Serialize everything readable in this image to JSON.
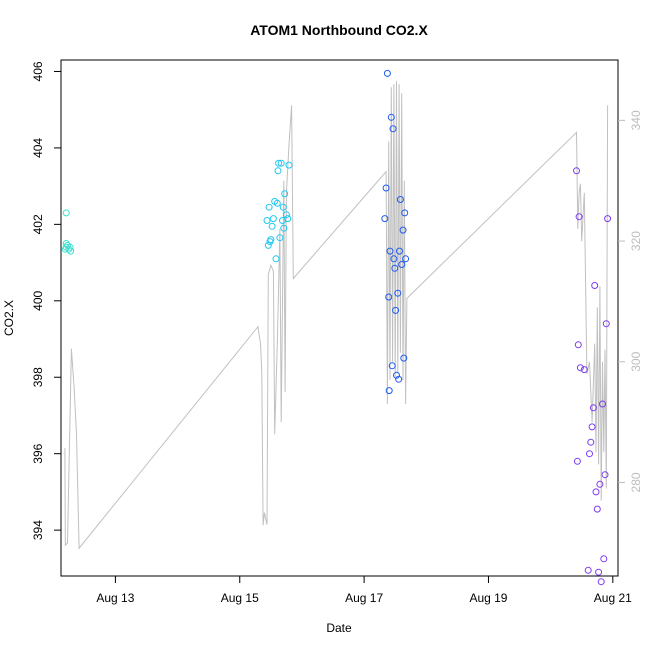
{
  "chart_data": {
    "type": "scatter",
    "title": "ATOM1 Northbound CO2.X",
    "xlabel": "Date",
    "ylabel": "CO2.X",
    "x_ticks": [
      "Aug 13",
      "Aug 15",
      "Aug 17",
      "Aug 19",
      "Aug 21"
    ],
    "y_ticks_left": [
      394,
      396,
      398,
      400,
      402,
      404,
      406
    ],
    "y_ticks_right": [
      280,
      300,
      320,
      340
    ],
    "xlim": [
      "2023-08-12 03:00",
      "2023-08-21 02:00"
    ],
    "ylim_left": [
      392.8,
      406.3
    ],
    "ylim_right": [
      264.5,
      350
    ],
    "right_axis_color": "#bdbdbd",
    "line_color": "#c0c0c0",
    "series": [
      {
        "color": "#40e0d0",
        "points": [
          [
            "2023-08-12 05:00",
            402.3
          ],
          [
            "2023-08-12 05:00",
            401.5
          ],
          [
            "2023-08-12 05:00",
            401.4
          ],
          [
            "2023-08-12 05:30",
            401.45
          ],
          [
            "2023-08-12 06:00",
            401.35
          ],
          [
            "2023-08-12 06:30",
            401.4
          ],
          [
            "2023-08-12 06:45",
            401.3
          ],
          [
            "2023-08-12 04:40",
            401.35
          ]
        ]
      },
      {
        "color": "#1ec8f0",
        "points": [
          [
            "2023-08-15 10:30",
            402.1
          ],
          [
            "2023-08-15 11:00",
            401.45
          ],
          [
            "2023-08-15 11:20",
            402.45
          ],
          [
            "2023-08-15 11:40",
            401.55
          ],
          [
            "2023-08-15 12:00",
            401.6
          ],
          [
            "2023-08-15 12:30",
            401.95
          ],
          [
            "2023-08-15 13:00",
            402.15
          ],
          [
            "2023-08-15 13:30",
            402.6
          ],
          [
            "2023-08-15 14:00",
            401.1
          ],
          [
            "2023-08-15 14:30",
            402.55
          ],
          [
            "2023-08-15 14:45",
            403.4
          ],
          [
            "2023-08-15 15:00",
            403.6
          ],
          [
            "2023-08-15 15:30",
            401.65
          ],
          [
            "2023-08-15 16:00",
            403.6
          ],
          [
            "2023-08-15 16:30",
            402.1
          ],
          [
            "2023-08-15 16:45",
            402.45
          ],
          [
            "2023-08-15 17:00",
            401.9
          ],
          [
            "2023-08-15 17:20",
            402.8
          ],
          [
            "2023-08-15 18:00",
            402.25
          ],
          [
            "2023-08-15 18:30",
            402.15
          ],
          [
            "2023-08-15 19:00",
            403.55
          ]
        ]
      },
      {
        "color": "#1f5cf0",
        "points": [
          [
            "2023-08-17 08:00",
            402.15
          ],
          [
            "2023-08-17 08:30",
            402.95
          ],
          [
            "2023-08-17 09:00",
            405.95
          ],
          [
            "2023-08-17 09:30",
            400.1
          ],
          [
            "2023-08-17 09:40",
            397.65
          ],
          [
            "2023-08-17 10:00",
            401.3
          ],
          [
            "2023-08-17 10:30",
            404.8
          ],
          [
            "2023-08-17 10:50",
            398.3
          ],
          [
            "2023-08-17 11:10",
            404.5
          ],
          [
            "2023-08-17 11:30",
            401.1
          ],
          [
            "2023-08-17 11:50",
            400.85
          ],
          [
            "2023-08-17 12:10",
            399.75
          ],
          [
            "2023-08-17 12:30",
            398.05
          ],
          [
            "2023-08-17 13:00",
            400.2
          ],
          [
            "2023-08-17 13:20",
            397.95
          ],
          [
            "2023-08-17 13:40",
            401.3
          ],
          [
            "2023-08-17 14:00",
            402.65
          ],
          [
            "2023-08-17 14:30",
            400.95
          ],
          [
            "2023-08-17 15:00",
            401.85
          ],
          [
            "2023-08-17 15:20",
            398.5
          ],
          [
            "2023-08-17 15:40",
            402.3
          ],
          [
            "2023-08-17 16:00",
            401.1
          ]
        ]
      },
      {
        "color": "#7d3cf0",
        "points": [
          [
            "2023-08-20 10:00",
            403.4
          ],
          [
            "2023-08-20 10:20",
            395.8
          ],
          [
            "2023-08-20 10:40",
            398.85
          ],
          [
            "2023-08-20 11:00",
            402.2
          ],
          [
            "2023-08-20 11:30",
            398.25
          ],
          [
            "2023-08-20 13:00",
            398.2
          ],
          [
            "2023-08-20 14:30",
            392.95
          ],
          [
            "2023-08-20 15:00",
            396.0
          ],
          [
            "2023-08-20 15:30",
            396.3
          ],
          [
            "2023-08-20 16:00",
            396.7
          ],
          [
            "2023-08-20 16:30",
            397.2
          ],
          [
            "2023-08-20 17:00",
            400.4
          ],
          [
            "2023-08-20 17:30",
            395.0
          ],
          [
            "2023-08-20 18:00",
            394.55
          ],
          [
            "2023-08-20 18:30",
            392.9
          ],
          [
            "2023-08-20 19:00",
            395.2
          ],
          [
            "2023-08-20 19:30",
            392.65
          ],
          [
            "2023-08-20 20:00",
            397.3
          ],
          [
            "2023-08-20 20:30",
            393.25
          ],
          [
            "2023-08-20 21:00",
            395.45
          ],
          [
            "2023-08-20 21:30",
            399.4
          ],
          [
            "2023-08-20 22:00",
            402.15
          ]
        ]
      }
    ],
    "line_series": {
      "axis": "right",
      "points": [
        [
          "2023-08-12 04:30",
          285.7
        ],
        [
          "2023-08-12 04:40",
          269.6
        ],
        [
          "2023-08-12 05:30",
          270.0
        ],
        [
          "2023-08-12 07:00",
          302.2
        ],
        [
          "2023-08-12 08:00",
          296.0
        ],
        [
          "2023-08-12 09:00",
          288.0
        ],
        [
          "2023-08-12 10:00",
          269.1
        ],
        [
          "2023-08-15 07:00",
          305.8
        ],
        [
          "2023-08-15 08:00",
          303.0
        ],
        [
          "2023-08-15 08:30",
          298.2
        ],
        [
          "2023-08-15 09:00",
          272.9
        ],
        [
          "2023-08-15 09:30",
          275.0
        ],
        [
          "2023-08-15 10:30",
          273.0
        ],
        [
          "2023-08-15 11:00",
          314.5
        ],
        [
          "2023-08-15 12:00",
          316.0
        ],
        [
          "2023-08-15 13:00",
          315.0
        ],
        [
          "2023-08-15 13:30",
          288.0
        ],
        [
          "2023-08-15 14:30",
          303.0
        ],
        [
          "2023-08-15 15:30",
          322.0
        ],
        [
          "2023-08-15 16:00",
          290.0
        ],
        [
          "2023-08-15 17:00",
          330.0
        ],
        [
          "2023-08-15 17:30",
          295.0
        ],
        [
          "2023-08-15 18:00",
          328.0
        ],
        [
          "2023-08-15 19:00",
          336.0
        ],
        [
          "2023-08-15 20:00",
          342.5
        ],
        [
          "2023-08-15 20:40",
          313.8
        ],
        [
          "2023-08-17 08:30",
          331.5
        ],
        [
          "2023-08-17 09:00",
          293.0
        ],
        [
          "2023-08-17 09:30",
          336.5
        ],
        [
          "2023-08-17 10:00",
          297.0
        ],
        [
          "2023-08-17 10:30",
          345.5
        ],
        [
          "2023-08-17 11:00",
          300.0
        ],
        [
          "2023-08-17 11:30",
          346.0
        ],
        [
          "2023-08-17 12:00",
          297.5
        ],
        [
          "2023-08-17 12:30",
          346.5
        ],
        [
          "2023-08-17 13:00",
          298.0
        ],
        [
          "2023-08-17 13:30",
          346.0
        ],
        [
          "2023-08-17 14:00",
          301.5
        ],
        [
          "2023-08-17 14:30",
          344.5
        ],
        [
          "2023-08-17 15:00",
          297.0
        ],
        [
          "2023-08-17 15:30",
          330.0
        ],
        [
          "2023-08-17 16:00",
          293.0
        ],
        [
          "2023-08-17 16:30",
          310.5
        ],
        [
          "2023-08-20 10:00",
          338.0
        ],
        [
          "2023-08-20 10:30",
          322.0
        ],
        [
          "2023-08-20 11:00",
          328.0
        ],
        [
          "2023-08-20 11:30",
          329.5
        ],
        [
          "2023-08-20 12:00",
          320.0
        ],
        [
          "2023-08-20 13:00",
          328.0
        ],
        [
          "2023-08-20 14:00",
          298.0
        ],
        [
          "2023-08-20 15:00",
          300.0
        ],
        [
          "2023-08-20 16:00",
          290.0
        ],
        [
          "2023-08-20 17:00",
          303.0
        ],
        [
          "2023-08-20 17:30",
          285.0
        ],
        [
          "2023-08-20 18:00",
          309.0
        ],
        [
          "2023-08-20 18:30",
          283.0
        ],
        [
          "2023-08-20 19:00",
          312.5
        ],
        [
          "2023-08-20 19:30",
          277.0
        ],
        [
          "2023-08-20 20:00",
          300.0
        ],
        [
          "2023-08-20 20:30",
          285.0
        ],
        [
          "2023-08-20 21:00",
          302.0
        ],
        [
          "2023-08-20 21:30",
          279.0
        ],
        [
          "2023-08-20 22:00",
          342.5
        ]
      ]
    }
  }
}
